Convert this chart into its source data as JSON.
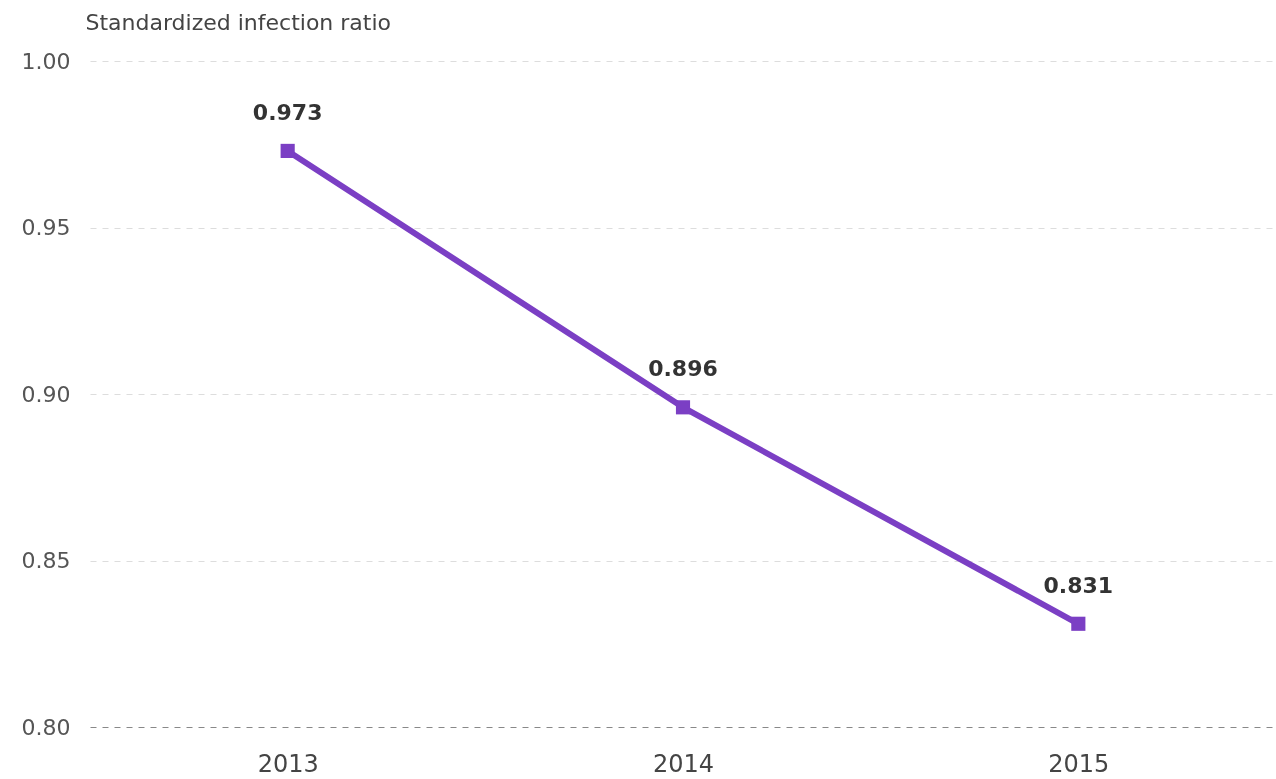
{
  "chart_data": {
    "type": "line",
    "ylabel": "Standardized infection ratio",
    "categories": [
      "2013",
      "2014",
      "2015"
    ],
    "series": [
      {
        "color": "#7b3fc4",
        "values": [
          0.973,
          0.896,
          0.831
        ]
      }
    ],
    "ylim": [
      0.8,
      1.0
    ],
    "yticks": [
      {
        "value": 0.8,
        "label": "0.80"
      },
      {
        "value": 0.85,
        "label": "0.85"
      },
      {
        "value": 0.9,
        "label": "0.90"
      },
      {
        "value": 0.95,
        "label": "0.95"
      },
      {
        "value": 1.0,
        "label": "1.00"
      }
    ],
    "grid": "y",
    "marker": "square",
    "line_style": "solid",
    "data_labels": true
  }
}
